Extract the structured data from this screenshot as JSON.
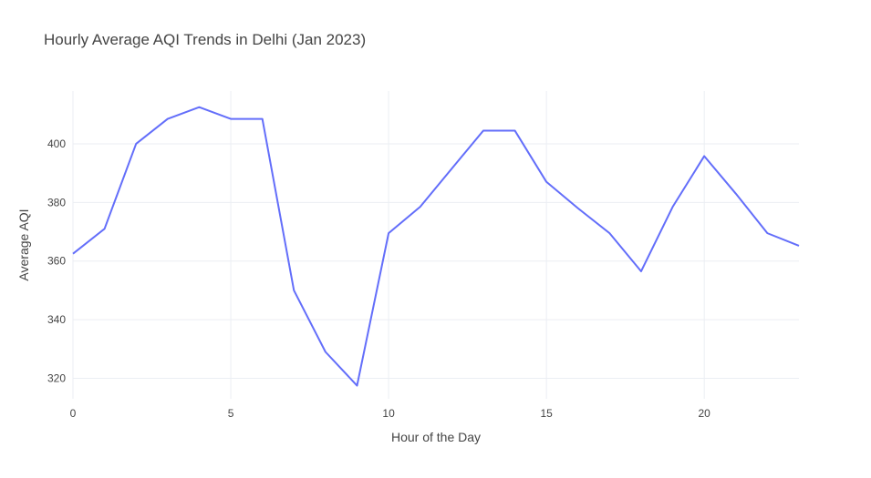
{
  "chart_data": {
    "type": "line",
    "title": "Hourly Average AQI Trends in Delhi (Jan 2023)",
    "xlabel": "Hour of the Day",
    "ylabel": "Average AQI",
    "xlim": [
      0,
      23
    ],
    "ylim": [
      313,
      418
    ],
    "xticks": [
      0,
      5,
      10,
      15,
      20
    ],
    "yticks": [
      320,
      340,
      360,
      380,
      400
    ],
    "grid": true,
    "legend": "none",
    "line_color": "#636EFA",
    "series": [
      {
        "x": [
          0,
          1,
          2,
          3,
          4,
          5,
          6,
          7,
          8,
          9,
          10,
          11,
          12,
          13,
          14,
          15,
          16,
          17,
          18,
          19,
          20,
          21,
          22,
          23
        ],
        "values": [
          362.5,
          371,
          400,
          408.5,
          412.5,
          408.5,
          408.5,
          350,
          329,
          317.5,
          369.5,
          378.5,
          391.5,
          404.5,
          404.5,
          387,
          378,
          369.5,
          356.5,
          378.5,
          395.8,
          383,
          369.5,
          365.2
        ]
      }
    ]
  }
}
